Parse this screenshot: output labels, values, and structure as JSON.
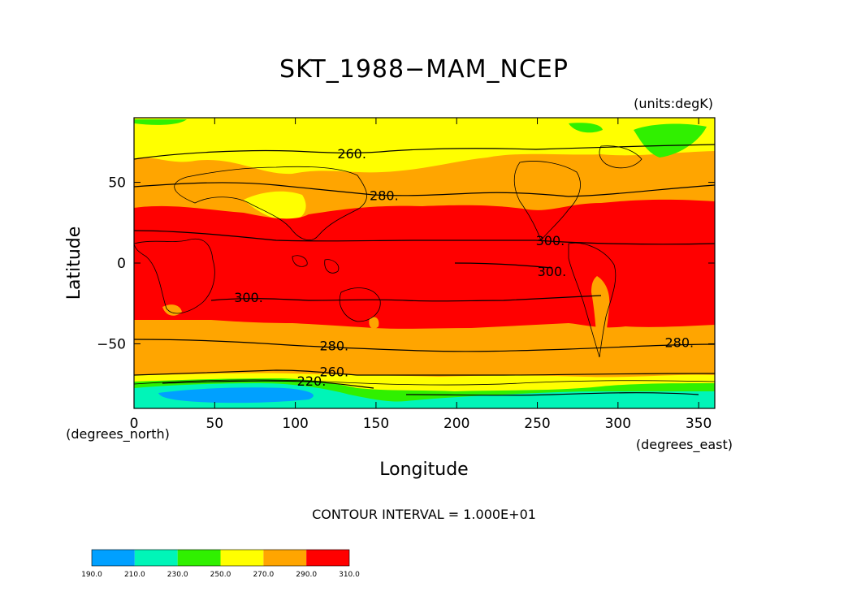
{
  "title": "SKT_1988−MAM_NCEP",
  "units": "(units:degK)",
  "xaxis": {
    "label": "Longitude",
    "unit": "(degrees_east)",
    "ticks": [
      "0",
      "50",
      "100",
      "150",
      "200",
      "250",
      "300",
      "350"
    ],
    "range": [
      0,
      360
    ]
  },
  "yaxis": {
    "label": "Latitude",
    "unit": "(degrees_north)",
    "ticks": [
      "50",
      "0",
      "−50"
    ],
    "range": [
      -90,
      90
    ]
  },
  "contour_interval": "CONTOUR INTERVAL = 1.000E+01",
  "contour_labels": [
    {
      "text": "260.",
      "lon": 135,
      "lat": 68
    },
    {
      "text": "280.",
      "lon": 155,
      "lat": 42
    },
    {
      "text": "300.",
      "lon": 258,
      "lat": 14
    },
    {
      "text": "300.",
      "lon": 259,
      "lat": -5
    },
    {
      "text": "300.",
      "lon": 71,
      "lat": -21
    },
    {
      "text": "280.",
      "lon": 124,
      "lat": -51
    },
    {
      "text": "280.",
      "lon": 338,
      "lat": -49
    },
    {
      "text": "260.",
      "lon": 124,
      "lat": -67
    },
    {
      "text": "220.",
      "lon": 110,
      "lat": -73
    }
  ],
  "colorbar": {
    "ticks": [
      "190.0",
      "210.0",
      "230.0",
      "250.0",
      "270.0",
      "290.0",
      "310.0"
    ],
    "colors": [
      "#00a0ff",
      "#00f5b8",
      "#30f000",
      "#ffff00",
      "#ffa500",
      "#ff0000"
    ]
  },
  "colors": {
    "c190": "#00a0ff",
    "c210": "#00f5b8",
    "c230": "#30f000",
    "c250": "#ffff00",
    "c270": "#ffa500",
    "c290": "#ff0000"
  }
}
